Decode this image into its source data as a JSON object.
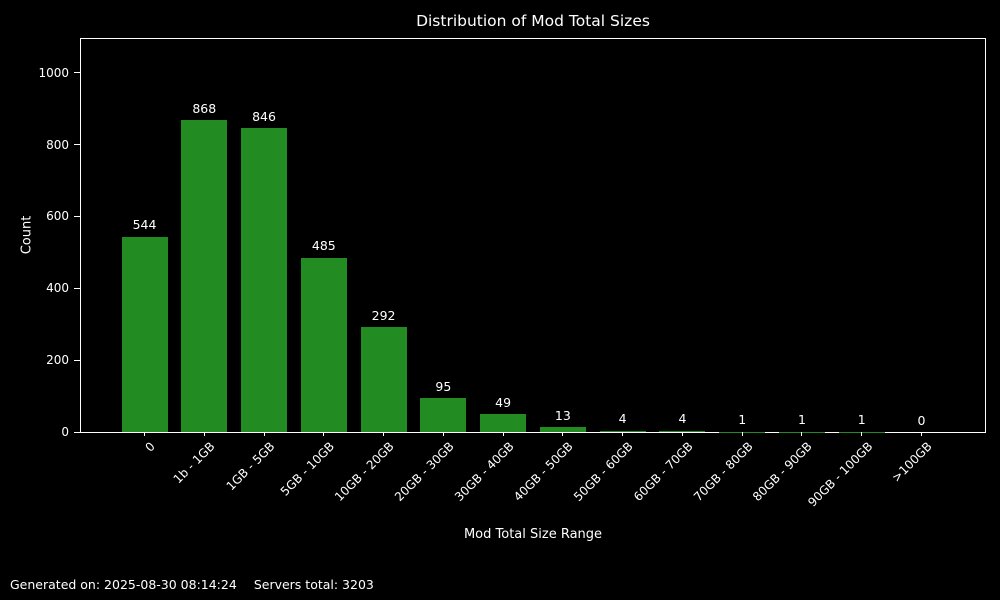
{
  "chart_data": {
    "type": "bar",
    "title": "Distribution of Mod Total Sizes",
    "xlabel": "Mod Total Size Range",
    "ylabel": "Count",
    "categories": [
      "0",
      "1b - 1GB",
      "1GB - 5GB",
      "5GB - 10GB",
      "10GB - 20GB",
      "20GB - 30GB",
      "30GB - 40GB",
      "40GB - 50GB",
      "50GB - 60GB",
      "60GB - 70GB",
      "70GB - 80GB",
      "80GB - 90GB",
      "90GB - 100GB",
      ">100GB"
    ],
    "values": [
      544,
      868,
      846,
      485,
      292,
      95,
      49,
      13,
      4,
      4,
      1,
      1,
      1,
      0
    ],
    "yticks": [
      0,
      200,
      400,
      600,
      800,
      1000
    ],
    "ylim": [
      0,
      1094
    ],
    "bar_color": "#228B22",
    "background_color": "#000000",
    "text_color": "#ffffff",
    "grid": false,
    "legend": null,
    "x_tick_rotation_deg": 45
  },
  "footer": {
    "generated_label": "Generated on: 2025-08-30 08:14:24",
    "servers_label": "Servers total: 3203"
  }
}
